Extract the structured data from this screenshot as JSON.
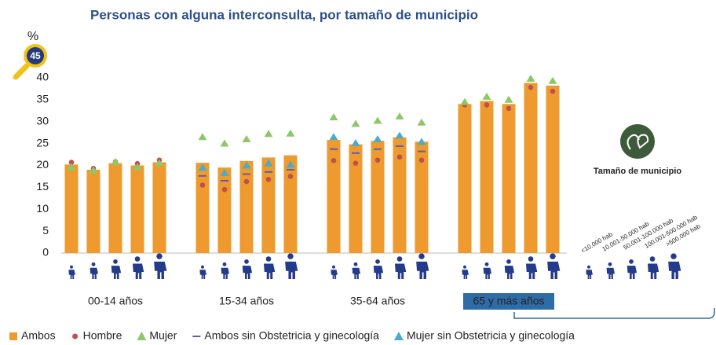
{
  "chart_data": {
    "type": "bar",
    "title": "Personas con alguna interconsulta, por tamaño de municipio",
    "y_label": "%",
    "groups": [
      "00-14 años",
      "15-34 años",
      "35-64 años",
      "65 y más años"
    ],
    "highlight_group": 3,
    "sizes_title": "Tamaño de municipio",
    "sizes": [
      "<10.000 hab",
      "10.001-50.000 hab",
      "50.001-100.000 hab",
      "100.001-500.000 hab",
      ">500.000 hab"
    ],
    "ylim": [
      0,
      45
    ],
    "yticks": [
      0,
      5,
      10,
      15,
      20,
      25,
      30,
      35,
      40,
      45
    ],
    "grid": false,
    "series": [
      {
        "name": "Ambos",
        "marker": "bar",
        "color": "#ee9a2e",
        "values": [
          20.2,
          19.0,
          20.5,
          20.0,
          20.7,
          20.6,
          19.5,
          21.0,
          21.8,
          22.3,
          25.8,
          24.8,
          25.6,
          26.4,
          25.4,
          34.0,
          34.7,
          34.0,
          38.8,
          38.2
        ]
      },
      {
        "name": "Hombre",
        "marker": "circle",
        "color": "#c0504d",
        "values": [
          20.7,
          19.3,
          20.8,
          20.4,
          21.2,
          15.5,
          14.5,
          16.3,
          16.8,
          17.5,
          21.1,
          20.5,
          21.2,
          21.9,
          21.2,
          33.8,
          33.8,
          33.0,
          37.8,
          36.9
        ]
      },
      {
        "name": "Mujer",
        "marker": "triangle",
        "color": "#8cc868",
        "values": [
          19.6,
          18.9,
          20.8,
          19.6,
          20.5,
          26.5,
          25.0,
          26.0,
          27.2,
          27.3,
          31.0,
          29.5,
          30.2,
          31.2,
          29.8,
          34.5,
          35.7,
          35.0,
          39.8,
          39.3
        ]
      },
      {
        "name": "Ambos sin Obstetricia y ginecología",
        "marker": "dash",
        "color": "#5e5ea8",
        "values": [
          null,
          null,
          null,
          null,
          null,
          17.6,
          16.5,
          18.0,
          18.5,
          19.0,
          23.7,
          22.8,
          23.7,
          24.4,
          23.2,
          null,
          null,
          null,
          null,
          null
        ]
      },
      {
        "name": "Mujer sin Obstetricia y ginecología",
        "marker": "triangle",
        "color": "#4bacc6",
        "values": [
          null,
          null,
          null,
          null,
          null,
          19.5,
          18.3,
          20.0,
          20.5,
          20.2,
          26.5,
          25.1,
          26.0,
          26.8,
          25.4,
          null,
          null,
          null,
          null,
          null
        ]
      }
    ]
  }
}
